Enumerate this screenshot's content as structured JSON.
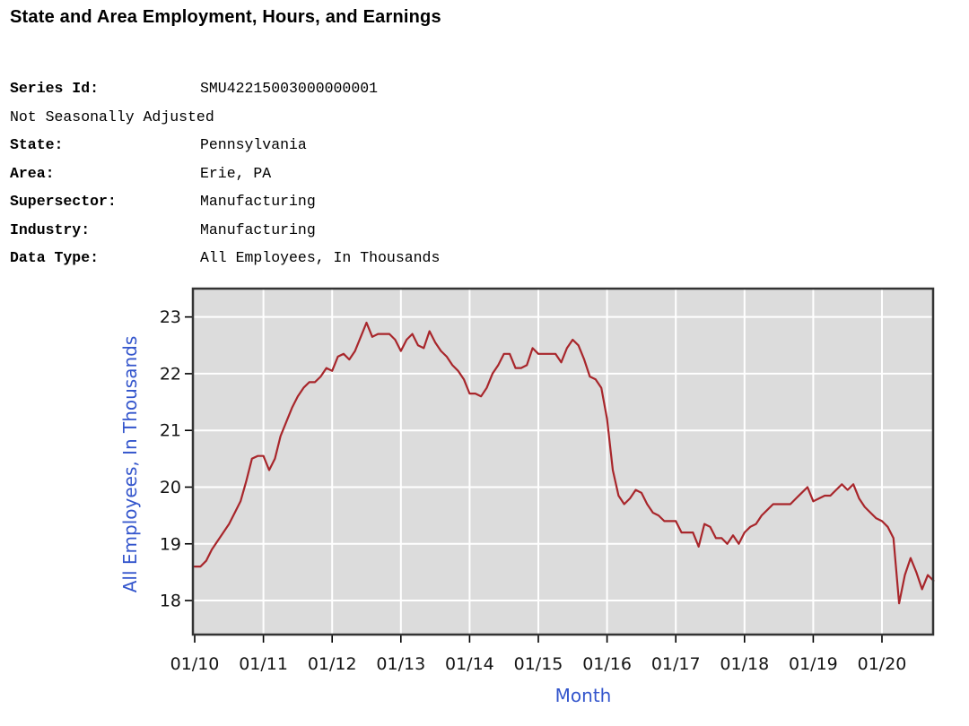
{
  "page": {
    "title": "State and Area Employment, Hours, and Earnings"
  },
  "meta": {
    "rows": [
      {
        "label": "Series Id:",
        "value": "SMU42215003000000001"
      },
      {
        "label": "State:",
        "value": "Pennsylvania"
      },
      {
        "label": "Area:",
        "value": "Erie, PA"
      },
      {
        "label": "Supersector:",
        "value": "Manufacturing"
      },
      {
        "label": "Industry:",
        "value": "Manufacturing"
      },
      {
        "label": "Data Type:",
        "value": "All Employees, In Thousands"
      }
    ],
    "seasonal_adjustment": "Not Seasonally Adjusted"
  },
  "chart_data": {
    "type": "line",
    "title": "",
    "xlabel": "Month",
    "ylabel": "All Employees, In Thousands",
    "x_range": {
      "start": "01/2010",
      "end": "10/2020",
      "frequency": "monthly"
    },
    "x_tick_labels": [
      "01/10",
      "01/11",
      "01/12",
      "01/13",
      "01/14",
      "01/15",
      "01/16",
      "01/17",
      "01/18",
      "01/19",
      "01/20"
    ],
    "y_ticks": [
      18,
      19,
      20,
      21,
      22,
      23
    ],
    "ylim": [
      17.4,
      23.5
    ],
    "grid": true,
    "legend_position": "none",
    "plot_bg": "#dcdcdc",
    "grid_color": "#ffffff",
    "line_color": "#a8262b",
    "axis_label_color": "#3355cc",
    "series": [
      {
        "name": "All Employees, In Thousands",
        "values": [
          18.6,
          18.6,
          18.7,
          18.9,
          19.05,
          19.2,
          19.35,
          19.55,
          19.75,
          20.1,
          20.5,
          20.55,
          20.55,
          20.3,
          20.5,
          20.9,
          21.15,
          21.4,
          21.6,
          21.75,
          21.85,
          21.85,
          21.95,
          22.1,
          22.05,
          22.3,
          22.35,
          22.25,
          22.4,
          22.65,
          22.9,
          22.65,
          22.7,
          22.7,
          22.7,
          22.6,
          22.4,
          22.6,
          22.7,
          22.5,
          22.45,
          22.75,
          22.55,
          22.4,
          22.3,
          22.15,
          22.05,
          21.9,
          21.65,
          21.65,
          21.6,
          21.75,
          22.0,
          22.15,
          22.35,
          22.35,
          22.1,
          22.1,
          22.15,
          22.45,
          22.35,
          22.35,
          22.35,
          22.35,
          22.2,
          22.45,
          22.6,
          22.5,
          22.25,
          21.95,
          21.9,
          21.75,
          21.2,
          20.3,
          19.85,
          19.7,
          19.8,
          19.95,
          19.9,
          19.7,
          19.55,
          19.5,
          19.4,
          19.4,
          19.4,
          19.2,
          19.2,
          19.2,
          18.95,
          19.35,
          19.3,
          19.1,
          19.1,
          19.0,
          19.15,
          19.0,
          19.2,
          19.3,
          19.35,
          19.5,
          19.6,
          19.7,
          19.7,
          19.7,
          19.7,
          19.8,
          19.9,
          20.0,
          19.75,
          19.8,
          19.85,
          19.85,
          19.95,
          20.05,
          19.95,
          20.05,
          19.8,
          19.65,
          19.55,
          19.45,
          19.4,
          19.3,
          19.1,
          17.95,
          18.45,
          18.75,
          18.5,
          18.2,
          18.45,
          18.35
        ]
      }
    ]
  }
}
